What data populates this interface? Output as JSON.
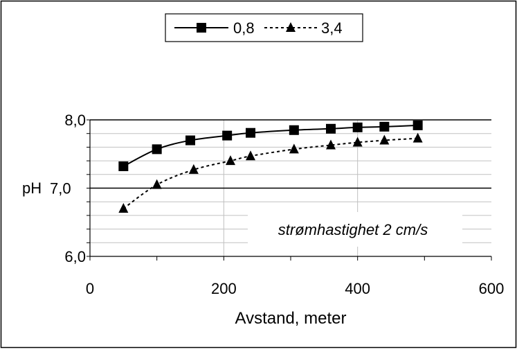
{
  "chart_data": {
    "type": "line",
    "title": "",
    "xlabel": "Avstand, meter",
    "ylabel": "pH",
    "xlim": [
      0,
      600
    ],
    "ylim": [
      6.0,
      8.0
    ],
    "x_ticks": [
      0,
      200,
      400,
      600
    ],
    "x_tick_labels": [
      "0",
      "200",
      "400",
      "600"
    ],
    "y_ticks": [
      6.0,
      7.0,
      8.0
    ],
    "y_tick_labels": [
      "6,0",
      "7,0",
      "8,0"
    ],
    "grid": true,
    "legend_position": "top-center",
    "annotation": "strømhastighet 2 cm/s",
    "colors": {
      "series": "#000000",
      "grid": "#c0c0c0"
    },
    "series": [
      {
        "name": "0,8",
        "marker": "square",
        "line_style": "solid",
        "x": [
          50,
          100,
          150,
          205,
          240,
          305,
          360,
          400,
          440,
          490
        ],
        "y": [
          7.32,
          7.57,
          7.7,
          7.77,
          7.81,
          7.85,
          7.87,
          7.89,
          7.9,
          7.92
        ]
      },
      {
        "name": "3,4",
        "marker": "triangle",
        "line_style": "dotted",
        "x": [
          50,
          100,
          155,
          210,
          240,
          305,
          360,
          400,
          440,
          490
        ],
        "y": [
          6.7,
          7.05,
          7.27,
          7.4,
          7.47,
          7.57,
          7.63,
          7.67,
          7.7,
          7.73
        ]
      }
    ]
  }
}
